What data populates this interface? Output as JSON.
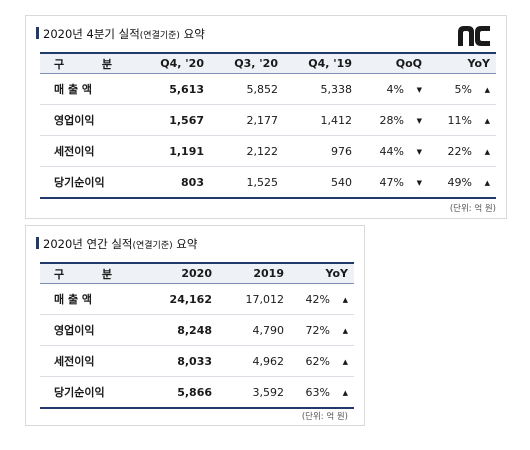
{
  "quarterly": {
    "title_main": "2020년 4분기 실적",
    "title_note": "(연결기준)",
    "title_tail": " 요약",
    "headers": [
      "Q4, '20",
      "Q3, '20",
      "Q4, '19",
      "QoQ",
      "YoY"
    ],
    "header_first": [
      "구",
      "분"
    ],
    "rows": [
      {
        "label": "매 출 액",
        "v1": "5,613",
        "v2": "5,852",
        "v3": "5,338",
        "qoq": "4%",
        "qoq_dir": "▼",
        "yoy": "5%",
        "yoy_dir": "▲"
      },
      {
        "label": "영업이익",
        "v1": "1,567",
        "v2": "2,177",
        "v3": "1,412",
        "qoq": "28%",
        "qoq_dir": "▼",
        "yoy": "11%",
        "yoy_dir": "▲"
      },
      {
        "label": "세전이익",
        "v1": "1,191",
        "v2": "2,122",
        "v3": "976",
        "qoq": "44%",
        "qoq_dir": "▼",
        "yoy": "22%",
        "yoy_dir": "▲"
      },
      {
        "label": "당기순이익",
        "v1": "803",
        "v2": "1,525",
        "v3": "540",
        "qoq": "47%",
        "qoq_dir": "▼",
        "yoy": "49%",
        "yoy_dir": "▲"
      }
    ],
    "unit": "(단위: 억 원)"
  },
  "annual": {
    "title_main": "2020년 연간 실적",
    "title_note": "(연결기준)",
    "title_tail": " 요약",
    "headers": [
      "2020",
      "2019",
      "YoY"
    ],
    "header_first": [
      "구",
      "분"
    ],
    "rows": [
      {
        "label": "매 출 액",
        "v1": "24,162",
        "v2": "17,012",
        "yoy": "42%",
        "yoy_dir": "▲"
      },
      {
        "label": "영업이익",
        "v1": "8,248",
        "v2": "4,790",
        "yoy": "72%",
        "yoy_dir": "▲"
      },
      {
        "label": "세전이익",
        "v1": "8,033",
        "v2": "4,962",
        "yoy": "62%",
        "yoy_dir": "▲"
      },
      {
        "label": "당기순이익",
        "v1": "5,866",
        "v2": "3,592",
        "yoy": "63%",
        "yoy_dir": "▲"
      }
    ],
    "unit": "(단위: 억 원)"
  },
  "logo": {
    "name": "nc-logo",
    "color": "#1a1a1a"
  },
  "accent_color": "#1f3a6b"
}
